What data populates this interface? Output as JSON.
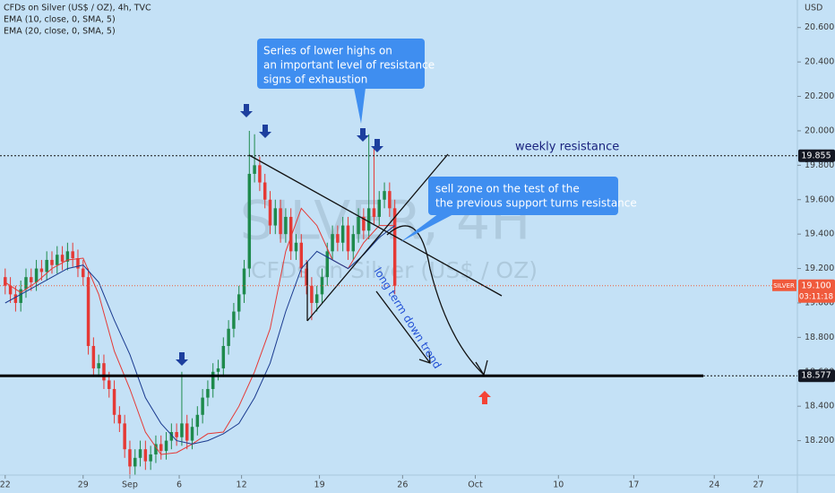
{
  "chart_data": {
    "type": "candlestick",
    "title": "CFDs on Silver (US$ / OZ), 4h, TVC",
    "y_unit": "USD",
    "watermark": {
      "symbol": "SILVER, 4H",
      "description": "CFDs on Silver (US$ / OZ)"
    },
    "up_color": "#1e8a4c",
    "down_color": "#e53935",
    "x": [
      0,
      2,
      4,
      6,
      8,
      10,
      12,
      14,
      16,
      18,
      20,
      22,
      24,
      26,
      28,
      30,
      32,
      34,
      36,
      38,
      40,
      42,
      44,
      46,
      48,
      50,
      52,
      54,
      56,
      58,
      60,
      62,
      64,
      66,
      68,
      70,
      72,
      74,
      76,
      78,
      80,
      82,
      84,
      86,
      88,
      90,
      92,
      94,
      96,
      98,
      100,
      102,
      104,
      106,
      108,
      110,
      112,
      114,
      116,
      118,
      120,
      122,
      124,
      126,
      128,
      130,
      132,
      134,
      136,
      138,
      140,
      142,
      144,
      146,
      148,
      150
    ],
    "open": [
      19.15,
      19.1,
      19.05,
      19.0,
      19.08,
      19.15,
      19.12,
      19.2,
      19.18,
      19.25,
      19.22,
      19.28,
      19.24,
      19.3,
      19.26,
      19.2,
      19.15,
      18.75,
      18.62,
      18.65,
      18.55,
      18.5,
      18.35,
      18.3,
      18.15,
      18.05,
      18.1,
      18.15,
      18.08,
      18.12,
      18.18,
      18.14,
      18.2,
      18.25,
      18.22,
      18.3,
      18.2,
      18.28,
      18.35,
      18.45,
      18.5,
      18.6,
      18.62,
      18.75,
      18.85,
      18.95,
      19.05,
      19.2,
      19.75,
      19.8,
      19.7,
      19.6,
      19.45,
      19.55,
      19.4,
      19.5,
      19.3,
      19.35,
      19.2,
      19.1,
      19.0,
      19.05,
      19.15,
      19.3,
      19.4,
      19.35,
      19.45,
      19.3,
      19.4,
      19.5,
      19.42,
      19.55,
      19.5,
      19.6,
      19.65,
      19.55
    ],
    "high": [
      19.2,
      19.15,
      19.1,
      19.13,
      19.2,
      19.2,
      19.25,
      19.25,
      19.3,
      19.3,
      19.33,
      19.33,
      19.35,
      19.35,
      19.31,
      19.25,
      19.2,
      18.8,
      18.7,
      18.7,
      18.6,
      18.55,
      18.4,
      18.35,
      18.2,
      18.15,
      18.2,
      18.2,
      18.17,
      18.23,
      18.23,
      18.25,
      18.3,
      18.3,
      18.6,
      18.35,
      18.33,
      18.4,
      18.5,
      18.55,
      18.65,
      18.67,
      18.8,
      18.9,
      19.0,
      19.1,
      19.25,
      20.0,
      19.98,
      19.85,
      19.75,
      19.65,
      19.6,
      19.6,
      19.55,
      19.55,
      19.4,
      19.4,
      19.25,
      19.15,
      19.1,
      19.2,
      19.35,
      19.45,
      19.45,
      19.5,
      19.5,
      19.45,
      19.55,
      19.55,
      19.98,
      19.9,
      19.65,
      19.7,
      19.7,
      19.6
    ],
    "low": [
      19.05,
      19.0,
      18.95,
      18.95,
      19.03,
      19.07,
      19.07,
      19.13,
      19.13,
      19.17,
      19.17,
      19.19,
      19.19,
      19.21,
      19.15,
      19.1,
      18.7,
      18.57,
      18.57,
      18.5,
      18.45,
      18.3,
      18.25,
      18.1,
      18.0,
      18.0,
      18.05,
      18.03,
      18.03,
      18.07,
      18.09,
      18.09,
      18.15,
      18.17,
      18.17,
      18.15,
      18.15,
      18.23,
      18.3,
      18.4,
      18.45,
      18.55,
      18.57,
      18.7,
      18.8,
      18.9,
      19.0,
      19.15,
      19.7,
      19.65,
      19.55,
      19.4,
      19.4,
      19.35,
      19.35,
      19.25,
      19.25,
      19.15,
      19.05,
      18.9,
      18.95,
      19.0,
      19.1,
      19.25,
      19.3,
      19.3,
      19.25,
      19.25,
      19.35,
      19.37,
      19.37,
      19.45,
      19.45,
      19.55,
      19.5,
      19.05
    ],
    "close": [
      19.1,
      19.05,
      19.0,
      19.08,
      19.15,
      19.12,
      19.2,
      19.18,
      19.25,
      19.22,
      19.28,
      19.24,
      19.3,
      19.26,
      19.2,
      19.15,
      18.75,
      18.62,
      18.65,
      18.55,
      18.5,
      18.35,
      18.3,
      18.15,
      18.05,
      18.1,
      18.15,
      18.08,
      18.12,
      18.18,
      18.14,
      18.2,
      18.25,
      18.22,
      18.3,
      18.2,
      18.28,
      18.35,
      18.45,
      18.5,
      18.6,
      18.62,
      18.75,
      18.85,
      18.95,
      19.05,
      19.2,
      19.75,
      19.8,
      19.7,
      19.6,
      19.45,
      19.55,
      19.4,
      19.5,
      19.3,
      19.35,
      19.2,
      19.1,
      19.0,
      19.05,
      19.15,
      19.3,
      19.4,
      19.35,
      19.45,
      19.3,
      19.4,
      19.5,
      19.42,
      19.55,
      19.5,
      19.6,
      19.65,
      19.55,
      19.1
    ],
    "indicators": [
      {
        "name": "EMA (10, close, 0, SMA, 5)",
        "color": "#e53935",
        "x": [
          0,
          6,
          12,
          18,
          24,
          30,
          36,
          42,
          48,
          54,
          60,
          66,
          72,
          78,
          84,
          90,
          96,
          102,
          108,
          114,
          120,
          126,
          132,
          138,
          144,
          150
        ],
        "values": [
          19.12,
          19.06,
          19.12,
          19.2,
          19.25,
          19.26,
          19.05,
          18.72,
          18.5,
          18.25,
          18.12,
          18.13,
          18.18,
          18.24,
          18.25,
          18.4,
          18.6,
          18.85,
          19.3,
          19.55,
          19.45,
          19.25,
          19.2,
          19.35,
          19.45,
          19.45
        ]
      },
      {
        "name": "EMA (20, close, 0, SMA, 5)",
        "color": "#1a3a8f",
        "x": [
          0,
          6,
          12,
          18,
          24,
          30,
          36,
          42,
          48,
          54,
          60,
          66,
          72,
          78,
          84,
          90,
          96,
          102,
          108,
          114,
          120,
          126,
          132,
          138,
          144,
          150
        ],
        "values": [
          19.0,
          19.05,
          19.1,
          19.15,
          19.2,
          19.22,
          19.12,
          18.9,
          18.7,
          18.45,
          18.3,
          18.2,
          18.18,
          18.2,
          18.24,
          18.3,
          18.45,
          18.65,
          18.95,
          19.2,
          19.3,
          19.25,
          19.2,
          19.28,
          19.38,
          19.45
        ]
      }
    ],
    "xlim": [
      -2,
      305
    ],
    "xticks": [
      {
        "value": 0,
        "label": "22"
      },
      {
        "value": 30,
        "label": "29"
      },
      {
        "value": 48,
        "label": "Sep"
      },
      {
        "value": 67,
        "label": "6"
      },
      {
        "value": 91,
        "label": "12"
      },
      {
        "value": 121,
        "label": "19"
      },
      {
        "value": 153,
        "label": "26"
      },
      {
        "value": 181,
        "label": "Oct"
      },
      {
        "value": 213,
        "label": "10"
      },
      {
        "value": 242,
        "label": "17"
      },
      {
        "value": 273,
        "label": "24"
      },
      {
        "value": 290,
        "label": "27"
      }
    ],
    "ylim": [
      18.0,
      20.76
    ],
    "yticks": [
      {
        "value": 18.2,
        "label": "18.200"
      },
      {
        "value": 18.4,
        "label": "18.400"
      },
      {
        "value": 18.6,
        "label": "18.600"
      },
      {
        "value": 18.8,
        "label": "18.800"
      },
      {
        "value": 19.0,
        "label": "19.000"
      },
      {
        "value": 19.2,
        "label": "19.200"
      },
      {
        "value": 19.4,
        "label": "19.400"
      },
      {
        "value": 19.6,
        "label": "19.600"
      },
      {
        "value": 19.8,
        "label": "19.800"
      },
      {
        "value": 20.0,
        "label": "20.000"
      },
      {
        "value": 20.2,
        "label": "20.200"
      },
      {
        "value": 20.4,
        "label": "20.400"
      },
      {
        "value": 20.6,
        "label": "20.600"
      }
    ],
    "levels": [
      {
        "value": 19.855,
        "label": "19.855",
        "note": "weekly resistance"
      },
      {
        "value": 18.577,
        "label": "18.577"
      }
    ],
    "last_price": {
      "name": "SILVER",
      "value": 19.1,
      "label": "19.100",
      "countdown": "03:11:18"
    },
    "annotations": {
      "callout_top": [
        "Series of lower highs on",
        "an important level of resistance",
        "signs of exhaustion"
      ],
      "callout_right": [
        "sell zone on the test of the",
        "the previous support turns resistance"
      ],
      "trend_text": "long term down trend"
    }
  }
}
